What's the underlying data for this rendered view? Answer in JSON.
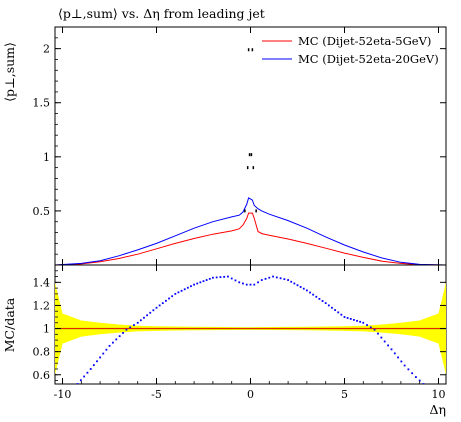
{
  "chart_data": [
    {
      "panel": "main",
      "type": "scatter",
      "title": "⟨p⊥,sum⟩ vs. Δη from leading jet",
      "xlabel": "",
      "ylabel": "⟨p⊥,sum⟩",
      "xlim": [
        -10.4,
        10.4
      ],
      "ylim": [
        0,
        2.2
      ],
      "yticks": [
        0,
        0.5,
        1,
        1.5,
        2
      ],
      "ytick_labels": [
        "",
        "0.5",
        "1",
        "1.5",
        "2"
      ],
      "legend_position": "top-right",
      "colors": {
        "data": "#000000",
        "MC (Dijet-52eta-5GeV)": "#ff0000",
        "MC (Dijet-52eta-20GeV)": "#0000ff"
      },
      "series": [
        {
          "name": "MC (Dijet-52eta-5GeV)",
          "style": "line",
          "x": [
            -10.4,
            -9,
            -8,
            -7,
            -6,
            -5,
            -4,
            -3,
            -2,
            -1,
            -0.6,
            -0.4,
            -0.2,
            -0.1,
            0.1,
            0.2,
            0.4,
            0.6,
            1,
            2,
            3,
            4,
            5,
            6,
            7,
            8,
            9,
            10.4
          ],
          "y": [
            0,
            0.01,
            0.03,
            0.06,
            0.1,
            0.15,
            0.2,
            0.245,
            0.285,
            0.315,
            0.335,
            0.37,
            0.43,
            0.48,
            0.48,
            0.43,
            0.31,
            0.29,
            0.275,
            0.24,
            0.2,
            0.155,
            0.11,
            0.07,
            0.035,
            0.015,
            0.004,
            0
          ]
        },
        {
          "name": "MC (Dijet-52eta-20GeV)",
          "style": "line",
          "x": [
            -10.4,
            -9,
            -8,
            -7,
            -6,
            -5,
            -4,
            -3,
            -2,
            -1,
            -0.6,
            -0.4,
            -0.2,
            -0.1,
            0.1,
            0.2,
            0.4,
            0.6,
            1,
            2,
            3,
            4,
            5,
            6,
            7,
            8,
            9,
            10.4
          ],
          "y": [
            0,
            0.015,
            0.04,
            0.085,
            0.14,
            0.2,
            0.27,
            0.34,
            0.4,
            0.445,
            0.46,
            0.49,
            0.56,
            0.62,
            0.6,
            0.55,
            0.52,
            0.5,
            0.47,
            0.41,
            0.34,
            0.26,
            0.185,
            0.12,
            0.065,
            0.025,
            0.006,
            0
          ]
        },
        {
          "name": "data",
          "style": "points",
          "x": [
            -0.3,
            -0.15,
            -0.05,
            0.05,
            0.15,
            0.3
          ],
          "y": [
            0.5,
            0.9,
            1.02,
            1.02,
            0.9,
            0.5
          ],
          "extra_points": [
            {
              "x": -0.1,
              "y": 1.99
            },
            {
              "x": 0.1,
              "y": 1.99
            }
          ]
        }
      ]
    },
    {
      "panel": "ratio",
      "type": "scatter",
      "xlabel": "Δη",
      "ylabel": "MC/data",
      "xlim": [
        -10.4,
        10.4
      ],
      "ylim": [
        0.52,
        1.55
      ],
      "xticks": [
        -10,
        -5,
        0,
        5,
        10
      ],
      "xtick_labels": [
        "-10",
        "-5",
        "0",
        "5",
        "10"
      ],
      "yticks": [
        0.6,
        0.8,
        1,
        1.2,
        1.4
      ],
      "ytick_labels": [
        "0.6",
        "0.8",
        "1",
        "1.2",
        "1.4"
      ],
      "reference_line": 1,
      "data_error_band": {
        "color": "#ffff00",
        "x": [
          -10.4,
          -10,
          -9,
          -8,
          -7,
          -6,
          -5,
          -3,
          0,
          3,
          5,
          6,
          7,
          8,
          9,
          10,
          10.4
        ],
        "half_width": [
          0.4,
          0.13,
          0.07,
          0.05,
          0.035,
          0.025,
          0.02,
          0.015,
          0.012,
          0.015,
          0.02,
          0.025,
          0.035,
          0.05,
          0.07,
          0.13,
          0.4
        ]
      },
      "series": [
        {
          "name": "MC (Dijet-52eta-20GeV) / data",
          "style": "points",
          "color": "#0000ff",
          "x": [
            -9.2,
            -8.5,
            -7.5,
            -6.6,
            -6,
            -5,
            -4,
            -3,
            -2,
            -1.2,
            -0.6,
            -0.2,
            0.2,
            0.6,
            1.2,
            2,
            3,
            4,
            5,
            6,
            6.6,
            7.5,
            8.2,
            8.8,
            9.2
          ],
          "y": [
            0.52,
            0.65,
            0.85,
            0.99,
            1.05,
            1.18,
            1.3,
            1.38,
            1.44,
            1.45,
            1.4,
            1.38,
            1.38,
            1.42,
            1.45,
            1.42,
            1.33,
            1.22,
            1.1,
            1.05,
            0.99,
            0.82,
            0.68,
            0.58,
            0.52
          ]
        },
        {
          "name": "MC (Dijet-52eta-5GeV) / data",
          "style": "points",
          "color": "#ff0000",
          "x": [
            -10.2,
            -9,
            -8,
            -7,
            -6,
            -5,
            -4,
            -3,
            -2,
            -1,
            0,
            1,
            2,
            3,
            4,
            5,
            6,
            7,
            8,
            9,
            10.2
          ],
          "y": [
            1,
            1,
            1,
            1,
            1,
            1,
            1,
            1,
            1,
            1,
            1,
            1,
            1,
            1,
            1,
            1,
            1,
            1,
            1,
            1,
            1
          ]
        }
      ]
    }
  ],
  "legend": {
    "entries": [
      {
        "label": "MC (Dijet-52eta-5GeV)",
        "color": "#ff0000"
      },
      {
        "label": "MC (Dijet-52eta-20GeV)",
        "color": "#0000ff"
      }
    ]
  },
  "labels": {
    "title": "⟨p⊥,sum⟩ vs. Δη from leading jet",
    "main_ylabel": "⟨p⊥,sum⟩",
    "ratio_ylabel": "MC/data",
    "xlabel": "Δη"
  }
}
